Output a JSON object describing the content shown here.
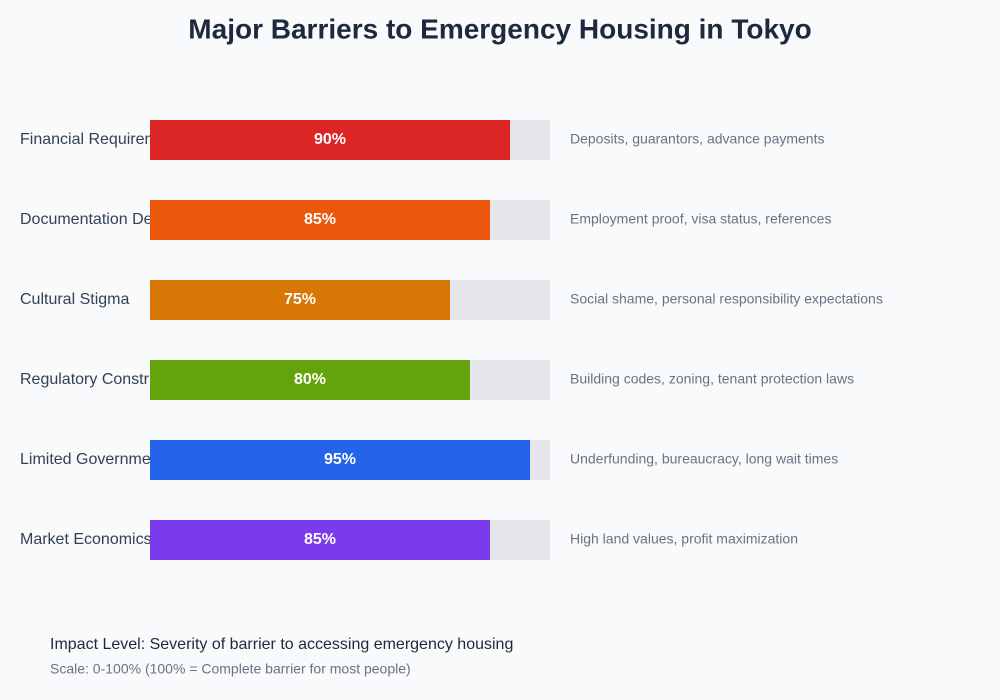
{
  "chart_data": {
    "type": "bar",
    "orientation": "horizontal",
    "title": "Major Barriers to Emergency Housing in Tokyo",
    "categories": [
      "Financial Requirem",
      "Documentation De",
      "Cultural Stigma",
      "Regulatory Constr",
      "Limited Governme",
      "Market Economics"
    ],
    "values": [
      90,
      85,
      75,
      80,
      95,
      85
    ],
    "value_labels": [
      "90%",
      "85%",
      "75%",
      "80%",
      "95%",
      "85%"
    ],
    "colors": [
      "#dc2626",
      "#ea580c",
      "#d97706",
      "#65a30d",
      "#2563eb",
      "#7c3aed"
    ],
    "descriptions": [
      "Deposits, guarantors, advance payments",
      "Employment proof, visa status, references",
      "Social shame, personal responsibility expectations",
      "Building codes, zoning, tenant protection laws",
      "Underfunding, bureaucracy, long wait times",
      "High land values, profit maximization"
    ],
    "xlim": [
      0,
      100
    ],
    "footnote_title": "Impact Level: Severity of barrier to accessing emergency housing",
    "footnote_scale": "Scale: 0-100% (100% = Complete barrier for most people)"
  }
}
